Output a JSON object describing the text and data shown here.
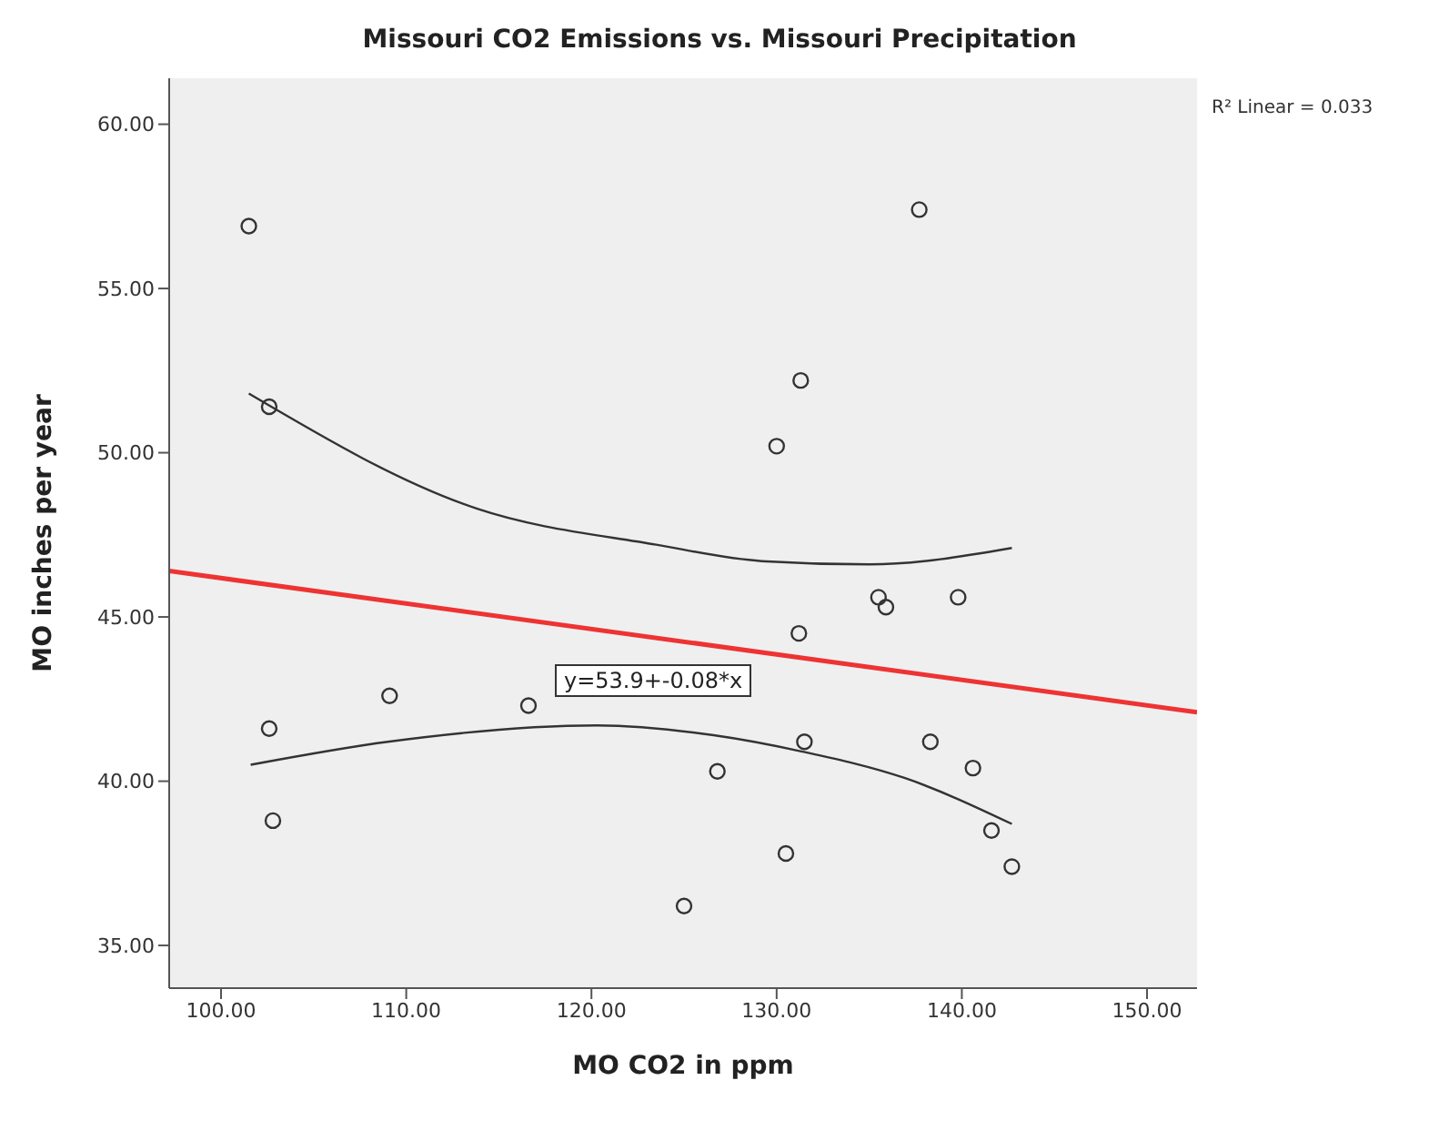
{
  "chart_data": {
    "type": "scatter",
    "title": "Missouri CO2 Emissions vs. Missouri Precipitation",
    "xlabel": "MO CO2 in ppm",
    "ylabel": "MO inches per year",
    "annotations": [
      "R² Linear = 0.033",
      "y=53.9+-0.08*x"
    ],
    "x": [
      101.5,
      102.6,
      102.6,
      102.8,
      109.1,
      116.6,
      125.0,
      126.8,
      130.5,
      130.0,
      131.3,
      131.5,
      131.2,
      137.7,
      135.5,
      135.9,
      139.8,
      138.3,
      140.6,
      141.6,
      142.7
    ],
    "series": [
      {
        "color": "#333333",
        "marker": "circle",
        "values": [
          56.9,
          51.4,
          41.6,
          38.8,
          42.6,
          42.3,
          36.2,
          40.3,
          37.8,
          50.2,
          52.2,
          41.2,
          44.5,
          57.4,
          45.6,
          45.3,
          45.6,
          41.2,
          40.4,
          38.5,
          37.4
        ]
      },
      {
        "type": "line",
        "color": "#ee3333",
        "marker": "none",
        "x": [
          97.2,
          152.7
        ],
        "values": [
          46.4,
          42.1
        ]
      },
      {
        "type": "line",
        "color": "#333333",
        "marker": "none",
        "x": [
          101.5,
          113.8,
          123.5,
          129.2,
          135,
          142.7
        ],
        "values": [
          51.8,
          48.3,
          47.2,
          46.7,
          46.6,
          47.1
        ]
      },
      {
        "type": "line",
        "color": "#333333",
        "marker": "none",
        "x": [
          101.6,
          109.0,
          120.3,
          126.6,
          131.4,
          136.9,
          142.7
        ],
        "values": [
          40.5,
          41.2,
          41.7,
          41.4,
          40.9,
          40.1,
          38.7
        ]
      }
    ],
    "xlim": [
      97.2,
      152.7
    ],
    "ylim": [
      33.7,
      61.4
    ],
    "xticks": [
      {
        "value": 100,
        "label": "100.00"
      },
      {
        "value": 110,
        "label": "110.00"
      },
      {
        "value": 120,
        "label": "120.00"
      },
      {
        "value": 130,
        "label": "130.00"
      },
      {
        "value": 140,
        "label": "140.00"
      },
      {
        "value": 150,
        "label": "150.00"
      }
    ],
    "yticks": [
      {
        "value": 35,
        "label": "35.00"
      },
      {
        "value": 40,
        "label": "40.00"
      },
      {
        "value": 45,
        "label": "45.00"
      },
      {
        "value": 50,
        "label": "50.00"
      },
      {
        "value": 55,
        "label": "55.00"
      },
      {
        "value": 60,
        "label": "60.00"
      }
    ],
    "grid": false,
    "legend": false
  }
}
